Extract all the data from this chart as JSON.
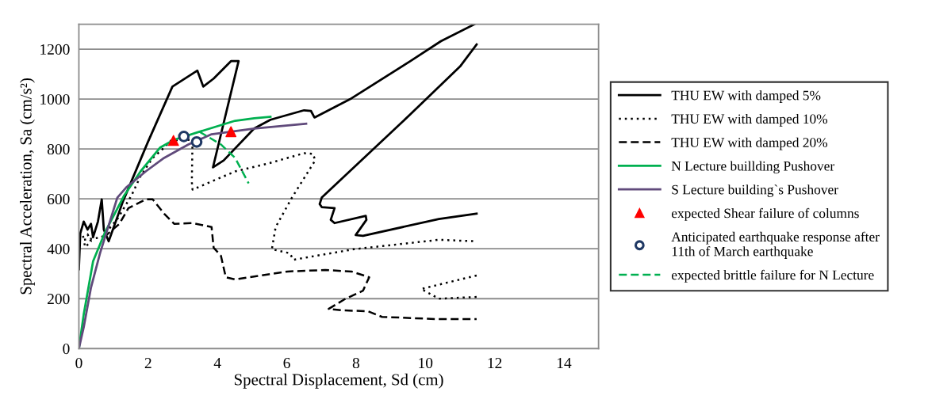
{
  "chart_data": {
    "type": "line",
    "xlabel": "Spectral Displacement, Sd (cm)",
    "ylabel": "Spectral Acceleration, Sa (cm/s²)",
    "xlim": [
      0,
      15
    ],
    "xticks": [
      0,
      2,
      4,
      6,
      8,
      10,
      12,
      14
    ],
    "ylim": [
      0,
      1300
    ],
    "yticks": [
      0,
      200,
      400,
      600,
      800,
      1000,
      1200
    ],
    "grid": "y",
    "legend": "right",
    "series": [
      {
        "name": "THU EW with damped 5%",
        "color": "#000000",
        "line_style": "solid",
        "marker": "none",
        "x": [
          0,
          0.04,
          0.14,
          0.25,
          0.35,
          0.41,
          0.55,
          0.66,
          0.72,
          0.86,
          1.27,
          1.99,
          2.7,
          3.42,
          3.59,
          3.89,
          4.39,
          4.61,
          3.87,
          4.18,
          5.06,
          5.53,
          6.5,
          6.7,
          6.8,
          7.87,
          9.57,
          10.45,
          11.41,
          null,
          11.48,
          11.0,
          9.57,
          7.01,
          6.95,
          7.01,
          7.38,
          7.27,
          7.38,
          8.28,
          8.3,
          7.99,
          8.2,
          10.39,
          11.48
        ],
        "values": [
          318,
          461,
          509,
          477,
          500,
          446,
          509,
          598,
          477,
          430,
          589,
          827,
          1050,
          1114,
          1050,
          1082,
          1152,
          1152,
          726,
          754,
          882,
          917,
          955,
          952,
          926,
          1003,
          1152,
          1232,
          1299,
          null,
          1219,
          1130,
          939,
          605,
          579,
          567,
          563,
          516,
          503,
          532,
          516,
          455,
          452,
          519,
          541
        ]
      },
      {
        "name": "THU EW with damped 10%",
        "color": "#000000",
        "line_style": "dotted",
        "marker": "none",
        "x": [
          0.1,
          0.25,
          0.35,
          0.18,
          0.14,
          0.66,
          1.11,
          1.52,
          1.78,
          2.13,
          2.46,
          2.66,
          3.28,
          3.26,
          3.28,
          4.51,
          5.47,
          6.5,
          6.76,
          6.82,
          6.15,
          5.68,
          5.57,
          6.09,
          6.19,
          7.93,
          10.39,
          11.48,
          null,
          11.48,
          9.88,
          10.39,
          11.48
        ],
        "values": [
          446,
          458,
          430,
          407,
          436,
          446,
          519,
          614,
          691,
          764,
          805,
          834,
          837,
          668,
          637,
          710,
          742,
          783,
          780,
          754,
          605,
          487,
          398,
          382,
          356,
          398,
          436,
          430,
          null,
          293,
          239,
          200,
          207
        ]
      },
      {
        "name": "THU EW with damped 20%",
        "color": "#000000",
        "line_style": "dashed",
        "marker": "none",
        "x": [
          0.72,
          1.17,
          1.43,
          1.93,
          2.13,
          2.46,
          2.75,
          3.28,
          3.83,
          3.89,
          4.1,
          4.24,
          4.51,
          6.02,
          7.11,
          7.87,
          8.38,
          8.2,
          7.66,
          7.21,
          7.66,
          8.34,
          8.75,
          10.39,
          11.48
        ],
        "values": [
          446,
          500,
          563,
          598,
          598,
          541,
          500,
          503,
          487,
          404,
          372,
          286,
          277,
          309,
          315,
          309,
          286,
          232,
          197,
          159,
          153,
          150,
          127,
          118,
          118
        ]
      },
      {
        "name": "N Lecture buillding Pushover",
        "color": "#00b050",
        "line_style": "solid",
        "marker": "none",
        "x": [
          0,
          0.14,
          0.41,
          0.76,
          1.31,
          1.78,
          2.34,
          2.75,
          3.48,
          4.51,
          5.06,
          5.53
        ],
        "values": [
          0,
          137,
          350,
          468,
          614,
          710,
          805,
          837,
          869,
          913,
          923,
          929
        ]
      },
      {
        "name": "S Lecture building`s Pushover",
        "color": "#604a7b",
        "line_style": "solid",
        "marker": "none",
        "x": [
          0,
          0.14,
          0.35,
          0.61,
          1.11,
          1.37,
          1.93,
          2.46,
          3.16,
          3.83,
          5.06,
          6.56
        ],
        "values": [
          0,
          86,
          245,
          382,
          605,
          646,
          710,
          764,
          818,
          859,
          882,
          901
        ]
      },
      {
        "name": "expected Shear failure of columns",
        "type": "scatter",
        "color": "#ff0000",
        "marker": "triangle",
        "x": [
          2.73,
          4.39
        ],
        "values": [
          834,
          869
        ]
      },
      {
        "name": "Anticipated earthquake response after\n11th of March earthquake",
        "type": "scatter",
        "color": "#1f3864",
        "marker": "circle",
        "x": [
          3.03,
          3.4
        ],
        "values": [
          850,
          828
        ]
      },
      {
        "name": "expected brittle failure for N Lecture",
        "color": "#00b050",
        "line_style": "dashed",
        "marker": "none",
        "x": [
          3.48,
          4.1,
          4.51,
          4.9
        ],
        "values": [
          869,
          818,
          764,
          662
        ]
      }
    ]
  }
}
